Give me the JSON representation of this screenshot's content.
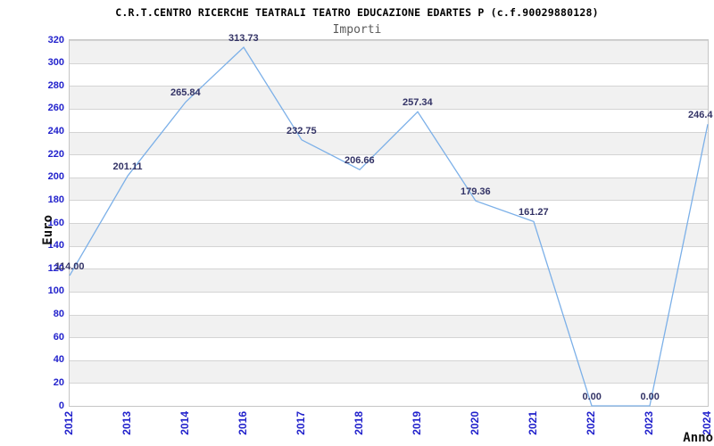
{
  "chart_data": {
    "type": "line",
    "title": "C.R.T.CENTRO RICERCHE TEATRALI TEATRO EDUCAZIONE EDARTES P (c.f.90029880128)",
    "subtitle": "Importi",
    "xlabel": "Anno",
    "ylabel": "Euro",
    "categories": [
      "2012",
      "2013",
      "2014",
      "2016",
      "2017",
      "2018",
      "2019",
      "2020",
      "2021",
      "2022",
      "2023",
      "2024"
    ],
    "values": [
      114.0,
      201.11,
      265.84,
      313.73,
      232.75,
      206.66,
      257.34,
      179.36,
      161.27,
      0.0,
      0.0,
      246.4
    ],
    "point_labels": [
      "114.00",
      "201.11",
      "265.84",
      "313.73",
      "232.75",
      "206.66",
      "257.34",
      "179.36",
      "161.27",
      "0.00",
      "0.00",
      "246.4"
    ],
    "ylim": [
      0,
      320
    ],
    "ytick_step": 20,
    "grid": "horizontal-bands",
    "legend": "none",
    "colors": {
      "line": "#7cb0e8",
      "band": "#f1f1f1",
      "gridline": "#d4d4d4",
      "plot_border": "#c6c6c6",
      "tick_label": "#2222cc",
      "point_label": "#333366",
      "title": "#000000",
      "subtitle": "#5a5a5a",
      "axis_title": "#111111"
    }
  }
}
